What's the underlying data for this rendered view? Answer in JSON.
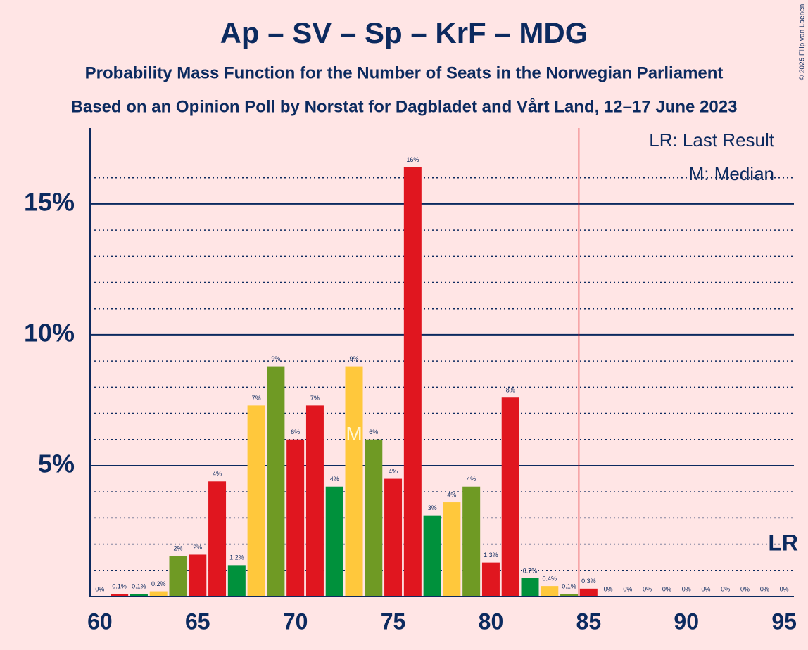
{
  "chart_data": {
    "type": "bar",
    "title": "Ap – SV – Sp – KrF – MDG",
    "subtitle": [
      "Probability Mass Function for the Number of Seats in the Norwegian Parliament",
      "Based on an Opinion Poll by Norstat for Dagbladet and Vårt Land, 12–17 June 2023"
    ],
    "copyright": "© 2025 Filip van Laenen",
    "legend": [
      "LR: Last Result",
      "M: Median"
    ],
    "x": [
      60,
      61,
      62,
      63,
      64,
      65,
      66,
      67,
      68,
      69,
      70,
      71,
      72,
      73,
      74,
      75,
      76,
      77,
      78,
      79,
      80,
      81,
      82,
      83,
      84,
      85,
      86,
      87,
      88,
      89,
      90,
      91,
      92,
      93,
      94,
      95
    ],
    "values": [
      0,
      0.1,
      0.1,
      0.2,
      1.55,
      1.6,
      4.4,
      1.2,
      7.3,
      8.8,
      6.0,
      7.3,
      4.2,
      8.8,
      6.0,
      4.5,
      16.4,
      3.1,
      3.6,
      4.2,
      1.3,
      7.6,
      0.7,
      0.4,
      0.1,
      0.3,
      0,
      0,
      0,
      0,
      0,
      0,
      0,
      0,
      0,
      0
    ],
    "value_labels": [
      "0%",
      "0.1%",
      "0.1%",
      "0.2%",
      "2%",
      "2%",
      "4%",
      "1.2%",
      "7%",
      "9%",
      "6%",
      "7%",
      "4%",
      "9%",
      "6%",
      "4%",
      "16%",
      "3%",
      "4%",
      "4%",
      "1.3%",
      "8%",
      "0.7%",
      "0.4%",
      "0.1%",
      "0.3%",
      "0%",
      "0%",
      "0%",
      "0%",
      "0%",
      "0%",
      "0%",
      "0%",
      "0%",
      "0%"
    ],
    "colors": [
      "#e0161f",
      "#e0161f",
      "#00913c",
      "#ffc83c",
      "#6f9a24",
      "#e0161f",
      "#e0161f",
      "#00913c",
      "#ffc83c",
      "#6f9a24",
      "#e0161f",
      "#e0161f",
      "#00913c",
      "#ffc83c",
      "#6f9a24",
      "#e0161f",
      "#e0161f",
      "#00913c",
      "#ffc83c",
      "#6f9a24",
      "#e0161f",
      "#e0161f",
      "#00913c",
      "#ffc83c",
      "#6f9a24",
      "#e0161f",
      "#e0161f",
      "#00913c",
      "#ffc83c",
      "#6f9a24",
      "#e0161f",
      "#e0161f",
      "#00913c",
      "#ffc83c",
      "#6f9a24",
      "#e0161f"
    ],
    "median": 73,
    "median_label": "M",
    "last_result": 85,
    "last_result_label": "LR",
    "xlim": [
      59.5,
      95.5
    ],
    "xticks": [
      60,
      65,
      70,
      75,
      80,
      85,
      90,
      95
    ],
    "ylim": [
      0,
      17.9
    ],
    "yticks": [
      {
        "value": 5,
        "label": "5%"
      },
      {
        "value": 10,
        "label": "10%"
      },
      {
        "value": 15,
        "label": "15%"
      }
    ],
    "minor_yticks": [
      1,
      2,
      3,
      4,
      6,
      7,
      8,
      9,
      11,
      12,
      13,
      14,
      16
    ],
    "grid": true
  }
}
